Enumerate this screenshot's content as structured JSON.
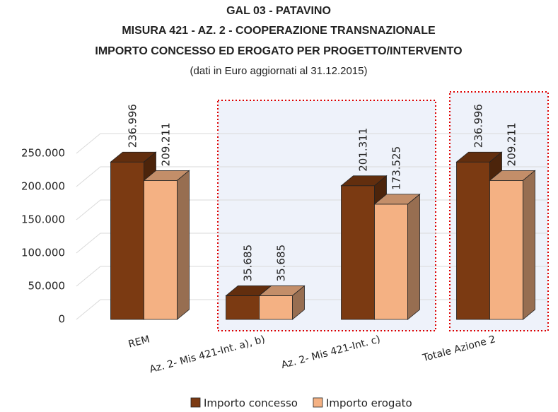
{
  "chart_data": {
    "type": "bar3d",
    "title": [
      "GAL 03 - PATAVINO",
      "MISURA 421 - AZ. 2 - COOPERAZIONE TRANSNAZIONALE",
      "IMPORTO CONCESSO ED EROGATO PER PROGETTO/INTERVENTO"
    ],
    "subtitle": "(dati in Euro aggiornati al 31.12.2015)",
    "categories": [
      "REM",
      "Az. 2- Mis 421-Int. a), b)",
      "Az. 2- Mis 421-Int. c)",
      "Totale Azione 2"
    ],
    "series": [
      {
        "name": "Importo concesso",
        "color": "#7b3a12",
        "values": [
          236996,
          35685,
          201311,
          236996
        ],
        "value_labels": [
          "236.996",
          "35.685",
          "201.311",
          "236.996"
        ]
      },
      {
        "name": "Importo erogato",
        "color": "#f4b183",
        "values": [
          209211,
          35685,
          173525,
          209211
        ],
        "value_labels": [
          "209.211",
          "35.685",
          "173.525",
          "209.211"
        ]
      }
    ],
    "ylim": [
      0,
      250000
    ],
    "yticks": [
      0,
      {
        "value": 50000,
        "label": "50.000"
      },
      {
        "value": 100000,
        "label": "100.000"
      },
      {
        "value": 150000,
        "label": "150.000"
      },
      {
        "value": 200000,
        "label": "200.000"
      },
      {
        "value": 250000,
        "label": "250.000"
      }
    ],
    "grid": true,
    "legend": "bottom"
  }
}
